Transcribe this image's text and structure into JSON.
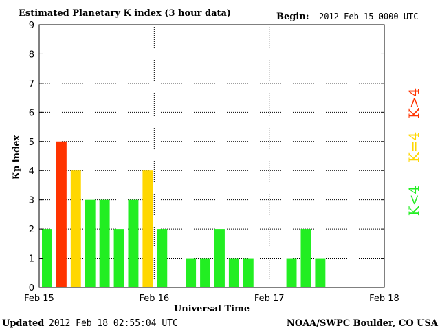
{
  "header": {
    "title": "Estimated Planetary K index (3 hour data)",
    "begin_label": "Begin:",
    "begin_value": "2012 Feb 15 0000 UTC"
  },
  "footer": {
    "updated_label": "Updated",
    "updated_value": "2012 Feb 18 02:55:04 UTC",
    "source": "NOAA/SWPC Boulder, CO USA"
  },
  "legend": [
    {
      "label": "K>4",
      "color": "#ff3300"
    },
    {
      "label": "K=4",
      "color": "#ffd700"
    },
    {
      "label": "K<4",
      "color": "#22ee22"
    }
  ],
  "colors": {
    "low": "#22ee22",
    "equal": "#ffd700",
    "high": "#ff3300"
  },
  "chart_data": {
    "type": "bar",
    "title": "Estimated Planetary K index (3 hour data)",
    "xlabel": "Universal Time",
    "ylabel": "Kp index",
    "ylim": [
      0,
      9
    ],
    "yticks": [
      "0",
      "1",
      "2",
      "3",
      "4",
      "5",
      "6",
      "7",
      "8",
      "9"
    ],
    "xticks": [
      "Feb 15",
      "Feb 16",
      "Feb 17",
      "Feb 18"
    ],
    "grid": true,
    "slots_per_day": 8,
    "days": 3,
    "values": [
      2,
      5,
      4,
      3,
      3,
      2,
      3,
      4,
      2,
      null,
      1,
      1,
      2,
      1,
      1,
      null,
      null,
      1,
      2,
      1,
      null,
      null,
      null,
      null
    ]
  }
}
